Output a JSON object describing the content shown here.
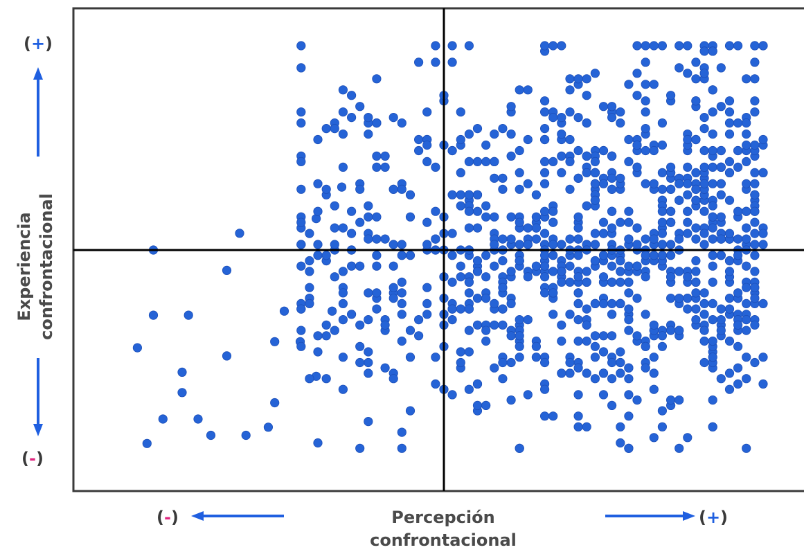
{
  "chart_data": {
    "type": "scatter",
    "xlabel": [
      "Percepción",
      "confrontacional"
    ],
    "ylabel": [
      "Experiencia",
      "confrontacional"
    ],
    "x_low_label": "-",
    "x_high_label": "+",
    "y_high_label": "+",
    "y_low_label": "-",
    "grid": false,
    "legend": "none",
    "xlim": [
      -1,
      1
    ],
    "ylim": [
      -1,
      1
    ],
    "point_color": "#2563d6",
    "minus_color": "#e0267f",
    "plus_color": "#1f5fe0",
    "arrow_color": "#1f5fe0",
    "quadrant_line_color": "#000000",
    "n_points_approx": 1000
  }
}
